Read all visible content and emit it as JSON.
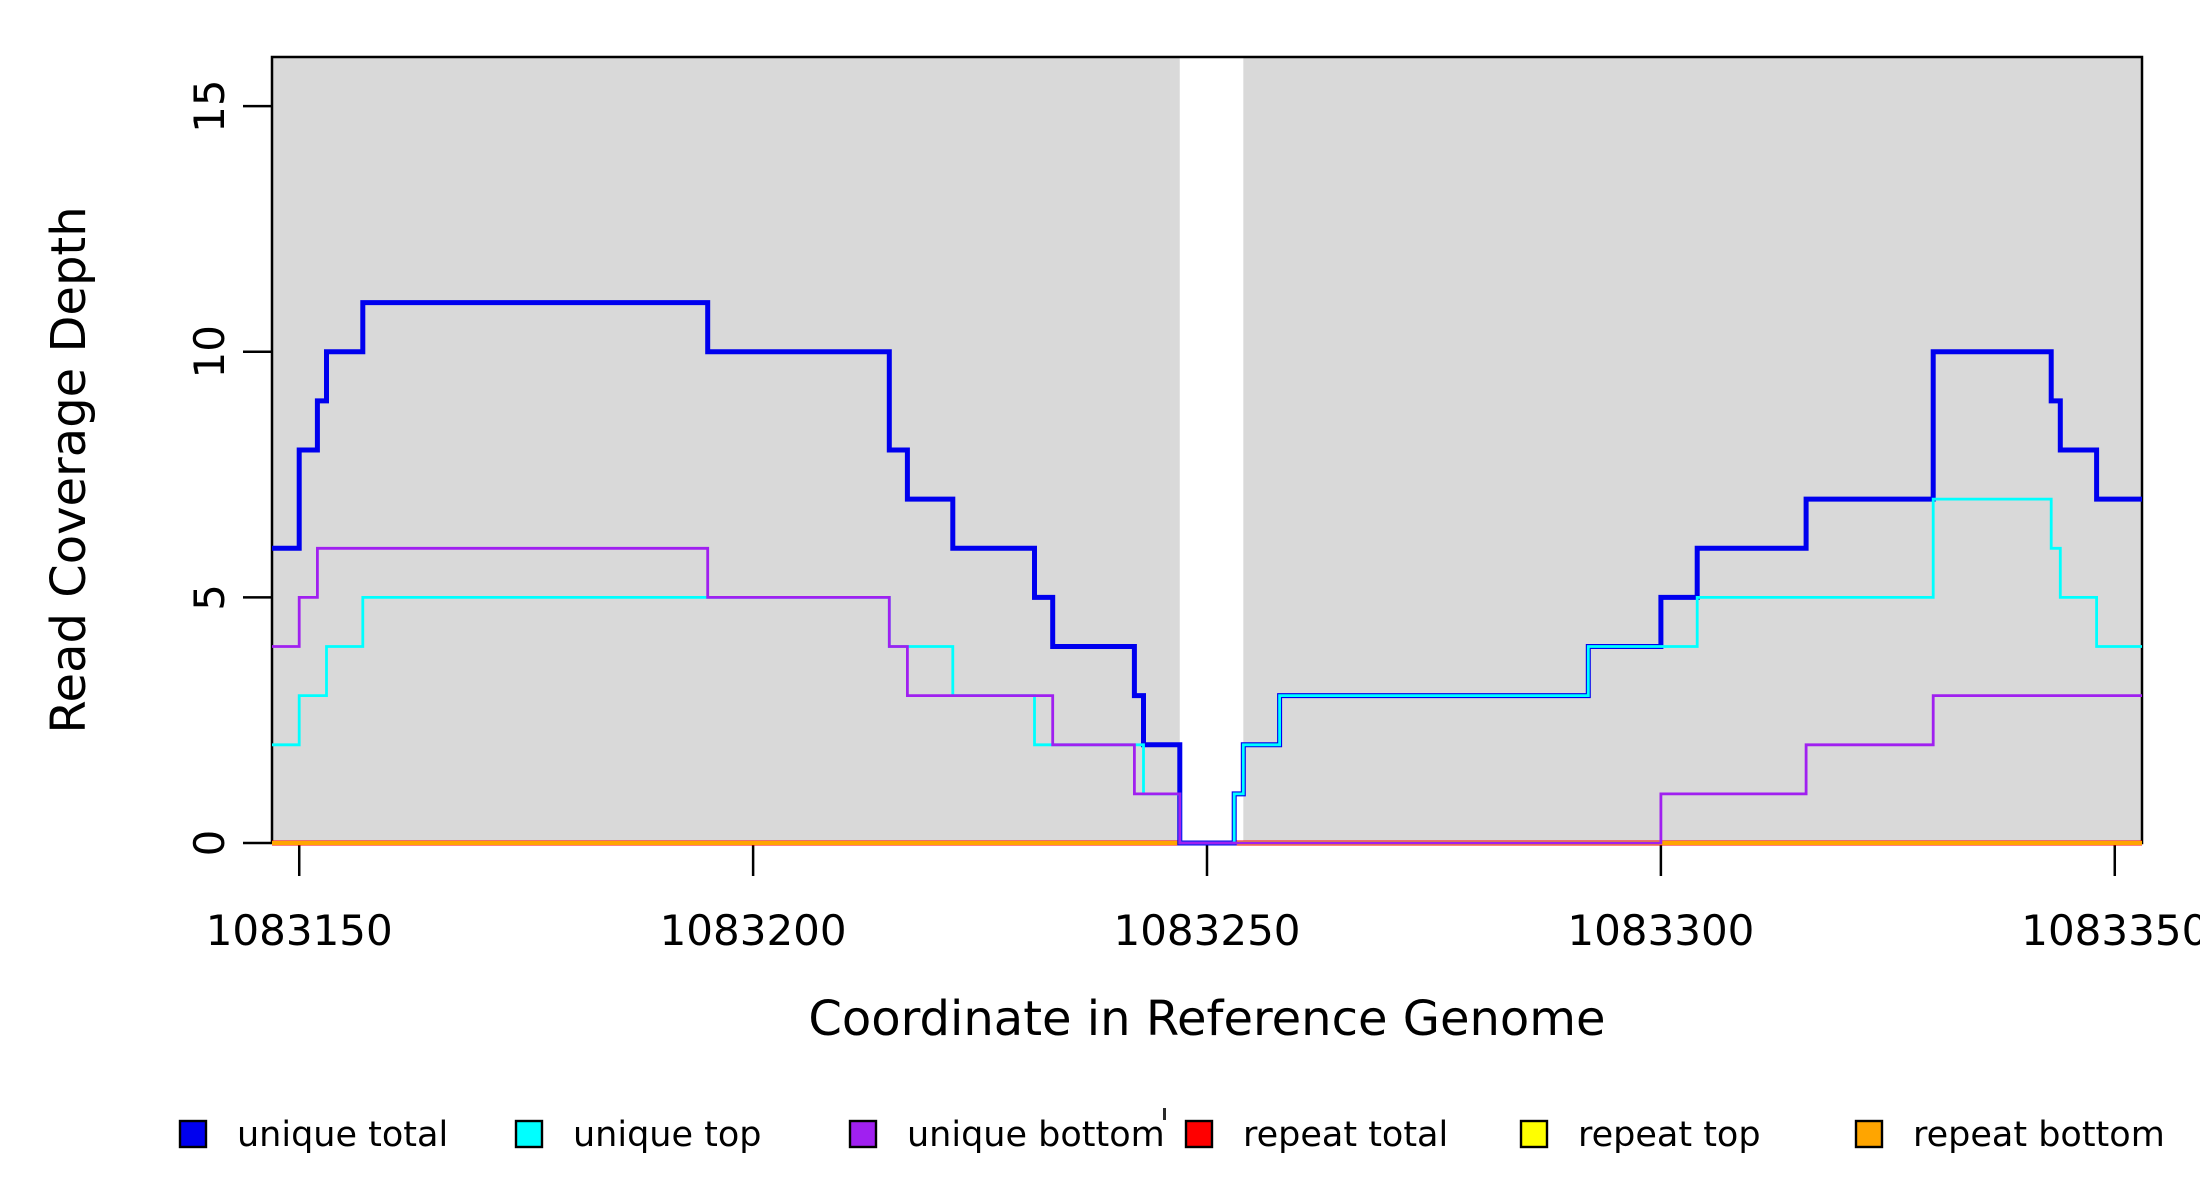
{
  "chart_data": {
    "type": "line",
    "subtype": "step-coverage-plot",
    "title": "",
    "xlabel": "Coordinate in Reference Genome",
    "ylabel": "Read Coverage Depth",
    "xlim": [
      1083147,
      1083353
    ],
    "ylim": [
      0,
      16
    ],
    "x_ticks": [
      1083150,
      1083200,
      1083250,
      1083300,
      1083350
    ],
    "y_ticks": [
      0,
      5,
      10,
      15
    ],
    "grid": false,
    "panel_background_color": "#d9d9d9",
    "panel_gap_note": "white vertical band interrupts the gray panel where coverage is zero",
    "background_bands": [
      {
        "x0": 1083147,
        "x1": 1083247
      },
      {
        "x0": 1083254,
        "x1": 1083353
      }
    ],
    "series": [
      {
        "name": "repeat total",
        "color": "#ff0000",
        "width": 5,
        "steps": [
          [
            1083147,
            0
          ],
          [
            1083353,
            0
          ]
        ]
      },
      {
        "name": "repeat top",
        "color": "#ffff00",
        "width": 4,
        "steps": [
          [
            1083147,
            0
          ],
          [
            1083353,
            0
          ]
        ]
      },
      {
        "name": "repeat bottom",
        "color": "#ffa500",
        "width": 4,
        "steps": [
          [
            1083147,
            0
          ],
          [
            1083353,
            0
          ]
        ]
      },
      {
        "name": "unique total",
        "color": "#0000ee",
        "width": 5,
        "steps": [
          [
            1083147,
            6
          ],
          [
            1083150,
            8
          ],
          [
            1083152,
            9
          ],
          [
            1083153,
            10
          ],
          [
            1083157,
            11
          ],
          [
            1083195,
            10
          ],
          [
            1083215,
            8
          ],
          [
            1083217,
            7
          ],
          [
            1083222,
            6
          ],
          [
            1083231,
            5
          ],
          [
            1083233,
            4
          ],
          [
            1083242,
            3
          ],
          [
            1083243,
            2
          ],
          [
            1083247,
            0
          ],
          [
            1083253,
            1
          ],
          [
            1083254,
            2
          ],
          [
            1083258,
            3
          ],
          [
            1083292,
            4
          ],
          [
            1083300,
            5
          ],
          [
            1083304,
            6
          ],
          [
            1083316,
            7
          ],
          [
            1083330,
            10
          ],
          [
            1083343,
            9
          ],
          [
            1083344,
            8
          ],
          [
            1083348,
            7
          ],
          [
            1083353,
            7
          ]
        ]
      },
      {
        "name": "unique top",
        "color": "#00ffff",
        "width": 2.8,
        "steps": [
          [
            1083147,
            2
          ],
          [
            1083150,
            3
          ],
          [
            1083153,
            4
          ],
          [
            1083157,
            5
          ],
          [
            1083215,
            4
          ],
          [
            1083222,
            3
          ],
          [
            1083231,
            2
          ],
          [
            1083243,
            1
          ],
          [
            1083247,
            0
          ],
          [
            1083253,
            1
          ],
          [
            1083254,
            2
          ],
          [
            1083258,
            3
          ],
          [
            1083292,
            4
          ],
          [
            1083304,
            5
          ],
          [
            1083330,
            7
          ],
          [
            1083343,
            6
          ],
          [
            1083344,
            5
          ],
          [
            1083348,
            4
          ],
          [
            1083353,
            4
          ]
        ]
      },
      {
        "name": "unique bottom",
        "color": "#a020f0",
        "width": 2.8,
        "steps": [
          [
            1083147,
            4
          ],
          [
            1083150,
            5
          ],
          [
            1083152,
            6
          ],
          [
            1083195,
            5
          ],
          [
            1083215,
            4
          ],
          [
            1083217,
            3
          ],
          [
            1083233,
            2
          ],
          [
            1083242,
            1
          ],
          [
            1083247,
            0
          ],
          [
            1083300,
            1
          ],
          [
            1083316,
            2
          ],
          [
            1083330,
            3
          ],
          [
            1083353,
            3
          ]
        ]
      }
    ],
    "legend": {
      "position": "bottom",
      "entries": [
        {
          "label": "unique total",
          "color": "#0000ee"
        },
        {
          "label": "unique top",
          "color": "#00ffff"
        },
        {
          "label": "unique bottom",
          "color": "#a020f0"
        },
        {
          "label": "repeat total",
          "color": "#ff0000"
        },
        {
          "label": "repeat top",
          "color": "#ffff00"
        },
        {
          "label": "repeat bottom",
          "color": "#ffa500"
        }
      ]
    },
    "axis_color": "#000000",
    "stray_mark": "'"
  }
}
